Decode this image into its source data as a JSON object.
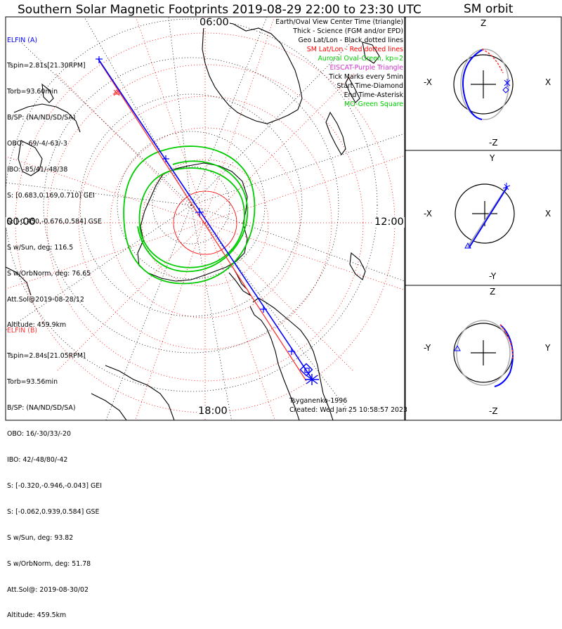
{
  "header": {
    "title": "Southern Solar Magnetic Footprints 2019-08-29 22:00 to 23:30 UTC",
    "orbit_title": "SM orbit"
  },
  "clock": {
    "top": "06:00",
    "left": "00:00",
    "right": "12:00",
    "bottom": "18:00"
  },
  "legend": [
    {
      "text": "Earth/Oval View Center Time (triangle)",
      "color": "#000000"
    },
    {
      "text": "Thick - Science (FGM and/or EPD)",
      "color": "#000000"
    },
    {
      "text": "Geo Lat/Lon - Black dotted lines",
      "color": "#000000"
    },
    {
      "text": "SM Lat/Lon - Red dotted lines",
      "color": "#ff0000"
    },
    {
      "text": "Auroral Oval-Green, kp=2",
      "color": "#00cc00"
    },
    {
      "text": "EISCAT-Purple Triangle",
      "color": "#cc33cc"
    },
    {
      "text": "Tick Marks every 5min",
      "color": "#000000"
    },
    {
      "text": "Start Time-Diamond",
      "color": "#000000"
    },
    {
      "text": "End Time-Asterisk",
      "color": "#000000"
    },
    {
      "text": "MO-Green Square",
      "color": "#00cc00"
    }
  ],
  "elfin_a": {
    "name": "ELFIN (A)",
    "color": "#0000ff",
    "lines": [
      "Tspin=2.81s[21.30RPM]",
      "Torb=93.60min",
      "B/SP: (NA/ND/SD/SA)",
      "OBO: -69/-4/-63/-3",
      "IBO: -85/41/-48/38",
      "S: [0.683,0.169,0.710] GEI",
      "S: [-0.450,-0.676,0.584] GSE",
      "S w/Sun, deg: 116.5",
      "S w/OrbNorm, deg: 76.65",
      "Att.Sol@2019-08-28/12",
      "Altitude: 459.9km"
    ]
  },
  "elfin_b": {
    "name": "ELFIN (B)",
    "color": "#ff0000",
    "lines": [
      "Tspin=2.84s[21.05RPM]",
      "Torb=93.56min",
      "B/SP: (NA/ND/SD/SA)",
      "OBO: 16/-30/33/-20",
      "IBO: 42/-48/80/-42",
      "S: [-0.320,-0.946,-0.043] GEI",
      "S: [-0.062,0.939,0.584] GSE",
      "S w/Sun, deg: 93.82",
      "S w/OrbNorm, deg: 51.78",
      "Att.Sol@: 2019-08-30/02",
      "Altitude: 459.5km"
    ]
  },
  "footer": {
    "model": "Tsyganenko-1996",
    "created": "Created: Wed Jan 25 10:58:57 2023"
  },
  "orbit_panels": [
    {
      "top": "Z",
      "bottom": "-Z",
      "left": "-X",
      "right": "X"
    },
    {
      "top": "Y",
      "bottom": "-Y",
      "left": "-X",
      "right": "X"
    },
    {
      "top": "Z",
      "bottom": "-Z",
      "left": "-Y",
      "right": "Y"
    }
  ],
  "colors": {
    "elfin_a": "#0000ff",
    "elfin_b": "#ff3333",
    "geo_grid": "#000000",
    "sm_grid": "#ff0000",
    "oval": "#00cc00"
  }
}
